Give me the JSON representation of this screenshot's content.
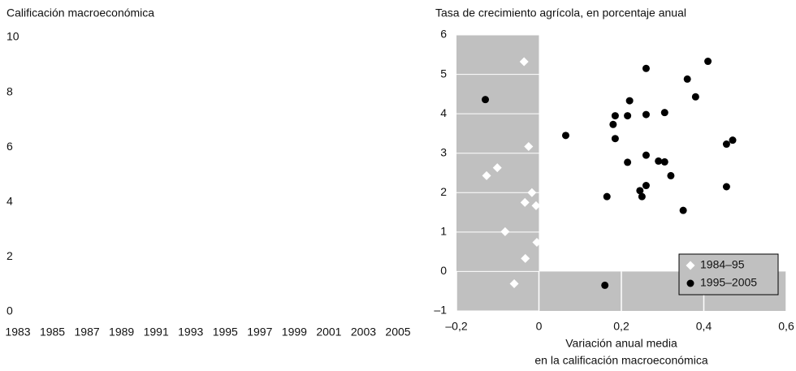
{
  "chart_data": [
    {
      "type": "line",
      "title": "Calificación macroeconómica",
      "categories": [
        "1983",
        "1985",
        "1987",
        "1989",
        "1991",
        "1993",
        "1995",
        "1997",
        "1999",
        "2001",
        "2003",
        "2005"
      ],
      "ylim": [
        0,
        10
      ],
      "yticks": [
        0,
        2,
        4,
        6,
        8,
        10
      ]
    },
    {
      "type": "scatter",
      "title": "Tasa de crecimiento agrícola, en porcentaje anual",
      "xlabel": [
        "Variación anual media",
        "en la calificación macroeconómica"
      ],
      "xlim": [
        -0.2,
        0.6
      ],
      "xticks": [
        {
          "value": -0.2,
          "label": "–0,2"
        },
        0,
        {
          "value": 0.2,
          "label": "0,2"
        },
        {
          "value": 0.4,
          "label": "0,4"
        },
        {
          "value": 0.6,
          "label": "0,6"
        }
      ],
      "ylim": [
        -1,
        6
      ],
      "yticks": [
        {
          "value": -1,
          "label": "–1"
        },
        0,
        1,
        2,
        3,
        4,
        5,
        6
      ],
      "background": "#c0c0c0",
      "legend": "lower right",
      "series": [
        {
          "name": "1984–95",
          "color": "#ffffff",
          "marker": "diamond",
          "x": [
            -0.036,
            -0.025,
            -0.127,
            -0.101,
            -0.017,
            -0.034,
            -0.007,
            -0.082,
            -0.005,
            -0.033,
            -0.06
          ],
          "values": [
            5.32,
            3.17,
            2.43,
            2.63,
            2.0,
            1.75,
            1.67,
            1.01,
            0.74,
            0.33,
            -0.31
          ]
        },
        {
          "name": "1995–2005",
          "color": "#000000",
          "marker": "circle",
          "x": [
            0.41,
            0.36,
            0.38,
            0.26,
            0.22,
            0.215,
            0.185,
            0.18,
            0.26,
            0.305,
            0.185,
            0.26,
            0.29,
            0.305,
            0.215,
            0.32,
            0.455,
            0.47,
            0.245,
            0.26,
            0.25,
            0.165,
            0.455,
            0.35,
            0.065,
            -0.13,
            0.16
          ],
          "values": [
            5.33,
            4.88,
            4.43,
            5.15,
            4.33,
            3.95,
            3.95,
            3.73,
            3.98,
            4.03,
            3.37,
            2.95,
            2.8,
            2.78,
            2.77,
            2.43,
            3.23,
            3.33,
            2.05,
            2.18,
            1.9,
            1.9,
            2.15,
            1.55,
            3.45,
            4.36,
            -0.35
          ]
        }
      ]
    }
  ]
}
